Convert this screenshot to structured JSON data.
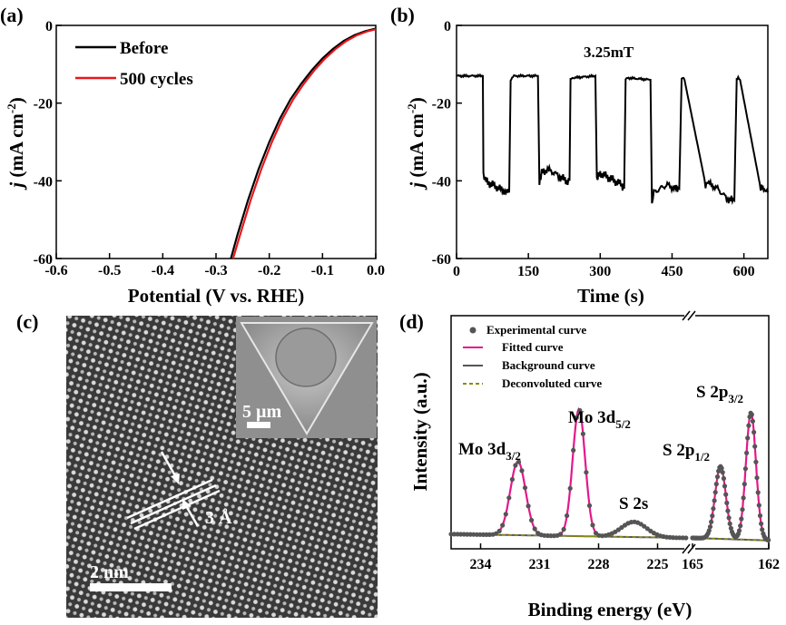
{
  "chart_data": [
    {
      "panel": "(a)",
      "type": "line",
      "xlabel": "Potential (V vs. RHE)",
      "ylabel": "j (mA cm-2)",
      "ylabel_parts": [
        "j",
        " (mA cm",
        "-2",
        ")"
      ],
      "xlim": [
        -0.6,
        0.0
      ],
      "ylim": [
        -60,
        0
      ],
      "xticks": [
        -0.6,
        -0.5,
        -0.4,
        -0.3,
        -0.2,
        -0.1,
        0.0
      ],
      "xtick_labels": [
        "-0.6",
        "-0.5",
        "-0.4",
        "-0.3",
        "-0.2",
        "-0.1",
        "0.0"
      ],
      "yticks": [
        0,
        -20,
        -40,
        -60
      ],
      "ytick_labels": [
        "0",
        "-20",
        "-40",
        "-60"
      ],
      "legend_position": "top-left",
      "series": [
        {
          "name": "Before",
          "color": "#000000",
          "x": [
            -0.272,
            -0.26,
            -0.24,
            -0.22,
            -0.2,
            -0.18,
            -0.16,
            -0.14,
            -0.12,
            -0.1,
            -0.08,
            -0.06,
            -0.04,
            -0.02,
            0.0
          ],
          "y": [
            -60,
            -54,
            -45,
            -37,
            -30,
            -24,
            -19,
            -15,
            -11.5,
            -8.5,
            -6,
            -4,
            -2.5,
            -1.5,
            -0.8
          ]
        },
        {
          "name": "500 cycles",
          "color": "#e8171c",
          "x": [
            -0.268,
            -0.255,
            -0.235,
            -0.215,
            -0.195,
            -0.175,
            -0.155,
            -0.135,
            -0.115,
            -0.095,
            -0.075,
            -0.055,
            -0.035,
            -0.015,
            0.0
          ],
          "y": [
            -60,
            -54,
            -45,
            -37,
            -30,
            -24,
            -19,
            -15,
            -11.5,
            -8.5,
            -6,
            -4,
            -2.5,
            -1.5,
            -1.0
          ]
        }
      ]
    },
    {
      "panel": "(b)",
      "type": "line",
      "title": "3.25mT",
      "xlabel": "Time (s)",
      "ylabel": "j (mA cm-2)",
      "ylabel_parts": [
        "j",
        " (mA cm",
        "-2",
        ")"
      ],
      "xlim": [
        0,
        650
      ],
      "ylim": [
        -60,
        0
      ],
      "xticks": [
        0,
        150,
        300,
        450,
        600
      ],
      "xtick_labels": [
        "0",
        "150",
        "300",
        "450",
        "600"
      ],
      "yticks": [
        0,
        -20,
        -40,
        -60
      ],
      "ytick_labels": [
        "0",
        "-20",
        "-40",
        "-60"
      ],
      "series": [
        {
          "color": "#000000",
          "x": [
            0,
            55,
            56,
            60,
            75,
            90,
            105,
            110,
            113,
            116,
            120,
            170,
            173,
            178,
            190,
            205,
            215,
            230,
            236,
            238,
            242,
            290,
            293,
            300,
            315,
            330,
            345,
            350,
            353,
            357,
            405,
            408,
            412,
            425,
            440,
            455,
            465,
            470,
            472,
            476,
            520,
            523,
            530,
            545,
            560,
            570,
            580,
            585,
            588,
            592,
            635,
            638,
            645,
            650
          ],
          "y": [
            -13,
            -13,
            -38,
            -40,
            -41,
            -42,
            -43,
            -43,
            -14,
            -13.5,
            -13,
            -13,
            -40,
            -38,
            -37,
            -38,
            -39,
            -40,
            -40,
            -14,
            -13.5,
            -13,
            -40,
            -38,
            -39,
            -40,
            -41,
            -42,
            -14,
            -13.5,
            -14,
            -46,
            -43,
            -42,
            -41,
            -42,
            -42,
            -14,
            -13.5,
            -14,
            -41,
            -40,
            -41,
            -42,
            -44,
            -45,
            -45,
            -14,
            -13.5,
            -14,
            -42,
            -41,
            -43,
            -43
          ]
        }
      ]
    },
    {
      "panel": "(d)",
      "type": "line",
      "xlabel": "Binding energy (eV)",
      "ylabel": "Intensity (a.u.)",
      "xtick_labels_left": [
        "234",
        "231",
        "228",
        "225"
      ],
      "xticks_left": [
        234,
        231,
        228,
        225
      ],
      "xlim_left": [
        235.5,
        223.5
      ],
      "xtick_labels_right": [
        "165",
        "162"
      ],
      "xticks_right": [
        165,
        162
      ],
      "xlim_right": [
        165,
        162
      ],
      "legend_position": "top-left",
      "legend": [
        {
          "name": "Experimental curve",
          "color": "#555555",
          "marker": "dot"
        },
        {
          "name": "Fitted curve",
          "color": "#e4188b",
          "marker": "line"
        },
        {
          "name": "Background curve",
          "color": "#555555",
          "marker": "line"
        },
        {
          "name": "Deconvoluted curve",
          "color": "#8b8b12",
          "marker": "dash"
        }
      ],
      "peaks": [
        {
          "label_main": "Mo 3d",
          "label_sub": "3/2",
          "center": 232.1,
          "height": 0.58,
          "width": 0.55,
          "region": "left"
        },
        {
          "label_main": "Mo 3d",
          "label_sub": "5/2",
          "center": 229.0,
          "height": 1.0,
          "width": 0.45,
          "region": "left"
        },
        {
          "label_main": "S 2s",
          "label_sub": "",
          "center": 226.2,
          "height": 0.12,
          "width": 0.9,
          "region": "left"
        },
        {
          "label_main": "S 2p",
          "label_sub": "1/2",
          "center": 163.9,
          "height": 0.57,
          "width": 0.3,
          "region": "right"
        },
        {
          "label_main": "S 2p",
          "label_sub": "3/2",
          "center": 162.7,
          "height": 1.0,
          "width": 0.28,
          "region": "right"
        }
      ]
    }
  ],
  "panel_c": {
    "panel": "(c)",
    "inset_scale_label": "5 µm",
    "lattice_label": "3 Å",
    "scale_label": "2 nm"
  },
  "colors": {
    "red_series": "#e8171c",
    "fitted": "#e4188b",
    "deconvoluted": "#8b8b12",
    "exp_dots": "#555555"
  }
}
